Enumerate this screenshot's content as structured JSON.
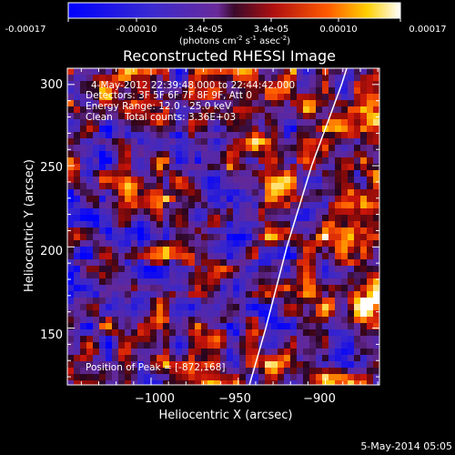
{
  "colorbar": {
    "tick_labels": [
      "-0.00017",
      "-0.00010",
      "-3.4e-05",
      "3.4e-05",
      "0.00010",
      "0.00017"
    ],
    "unit_prefix": "(photons cm",
    "unit_exp1": "-2",
    "unit_mid": " s",
    "unit_exp2": "-1",
    "unit_mid2": " asec",
    "unit_exp3": "-2",
    "unit_suffix": ")"
  },
  "annotations": {
    "time_range": "4-May-2012 22:39:48.000 to 22:44:42.000",
    "detectors": "Detectors: 3F 5F 6F 7F 8F 9F, Att 0",
    "energy": "Energy Range: 12.0 - 25.0 keV",
    "clean": "Clean    Total counts: 3.36E+03",
    "peak": "Position of Peak = [-872,168]"
  },
  "footer": {
    "date": "5-May-2014 05:05"
  },
  "chart_data": {
    "type": "heatmap",
    "title": "Reconstructed RHESSI Image",
    "xlabel": "Heliocentric X (arcsec)",
    "ylabel": "Heliocentric Y (arcsec)",
    "xlim": [
      -1048,
      -869
    ],
    "ylim": [
      115,
      310
    ],
    "x_ticks": [
      -1000,
      -950,
      -900
    ],
    "x_tick_labels": [
      "−1000",
      "−950",
      "−900"
    ],
    "y_ticks": [
      150,
      200,
      250,
      300
    ],
    "y_tick_labels": [
      "150",
      "200",
      "250",
      "300"
    ],
    "colorbar_range": [
      -0.00017,
      0.00017
    ],
    "colormap": "blue-purple-red-yellow-white",
    "peak_position": [
      -872,
      168
    ],
    "limb_points": [
      [
        -943.6,
        115
      ],
      [
        -934.2,
        150
      ],
      [
        -922.1,
        200
      ],
      [
        -907.9,
        250
      ],
      [
        -890.7,
        300
      ],
      [
        -887.8,
        310
      ]
    ],
    "grid": false
  }
}
